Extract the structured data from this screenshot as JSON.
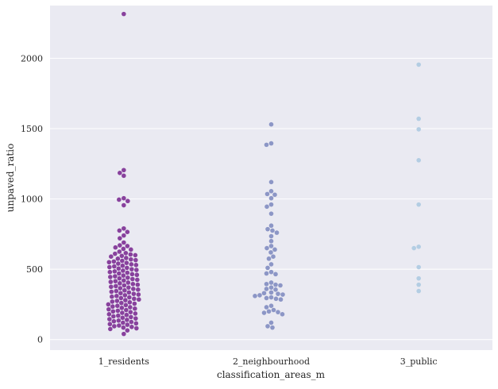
{
  "chart_data": {
    "type": "scatter",
    "subtype": "swarm",
    "title": "",
    "xlabel": "classification_areas_m",
    "ylabel": "unpaved_ratio",
    "ylim": [
      -75,
      2375
    ],
    "yticks": [
      0,
      500,
      1000,
      1500,
      2000
    ],
    "grid": true,
    "categories": [
      "1_residents",
      "2_neighbourhood",
      "3_public"
    ],
    "colors": [
      "#88419d",
      "#8c96c6",
      "#b3cde3"
    ],
    "background": "#eaeaf2",
    "series": [
      {
        "name": "1_residents",
        "values": [
          2315,
          1205,
          1185,
          1165,
          1005,
          995,
          985,
          955,
          790,
          775,
          765,
          740,
          720,
          690,
          670,
          665,
          655,
          645,
          640,
          625,
          615,
          610,
          605,
          600,
          595,
          590,
          580,
          575,
          570,
          565,
          560,
          555,
          550,
          545,
          540,
          535,
          530,
          525,
          520,
          515,
          510,
          505,
          500,
          495,
          490,
          485,
          480,
          475,
          470,
          465,
          460,
          455,
          450,
          445,
          440,
          435,
          430,
          425,
          420,
          415,
          410,
          405,
          400,
          395,
          390,
          385,
          380,
          375,
          370,
          365,
          360,
          355,
          350,
          345,
          340,
          335,
          330,
          325,
          320,
          315,
          310,
          305,
          300,
          295,
          290,
          285,
          280,
          275,
          270,
          265,
          260,
          255,
          250,
          245,
          240,
          235,
          230,
          225,
          220,
          215,
          210,
          205,
          200,
          195,
          190,
          185,
          180,
          175,
          170,
          165,
          160,
          155,
          150,
          145,
          140,
          135,
          130,
          125,
          120,
          115,
          110,
          105,
          100,
          95,
          90,
          85,
          80,
          75,
          65,
          40
        ]
      },
      {
        "name": "2_neighbourhood",
        "values": [
          1530,
          1395,
          1385,
          1120,
          1055,
          1035,
          1030,
          1005,
          960,
          945,
          895,
          810,
          785,
          775,
          760,
          735,
          700,
          665,
          650,
          640,
          620,
          590,
          575,
          535,
          510,
          480,
          470,
          465,
          405,
          395,
          390,
          385,
          370,
          360,
          355,
          335,
          330,
          325,
          320,
          315,
          310,
          300,
          295,
          290,
          285,
          240,
          230,
          210,
          200,
          195,
          190,
          180,
          120,
          95,
          85
        ]
      },
      {
        "name": "3_public",
        "values": [
          1955,
          1570,
          1495,
          1275,
          960,
          660,
          650,
          515,
          435,
          390,
          345
        ]
      }
    ]
  }
}
